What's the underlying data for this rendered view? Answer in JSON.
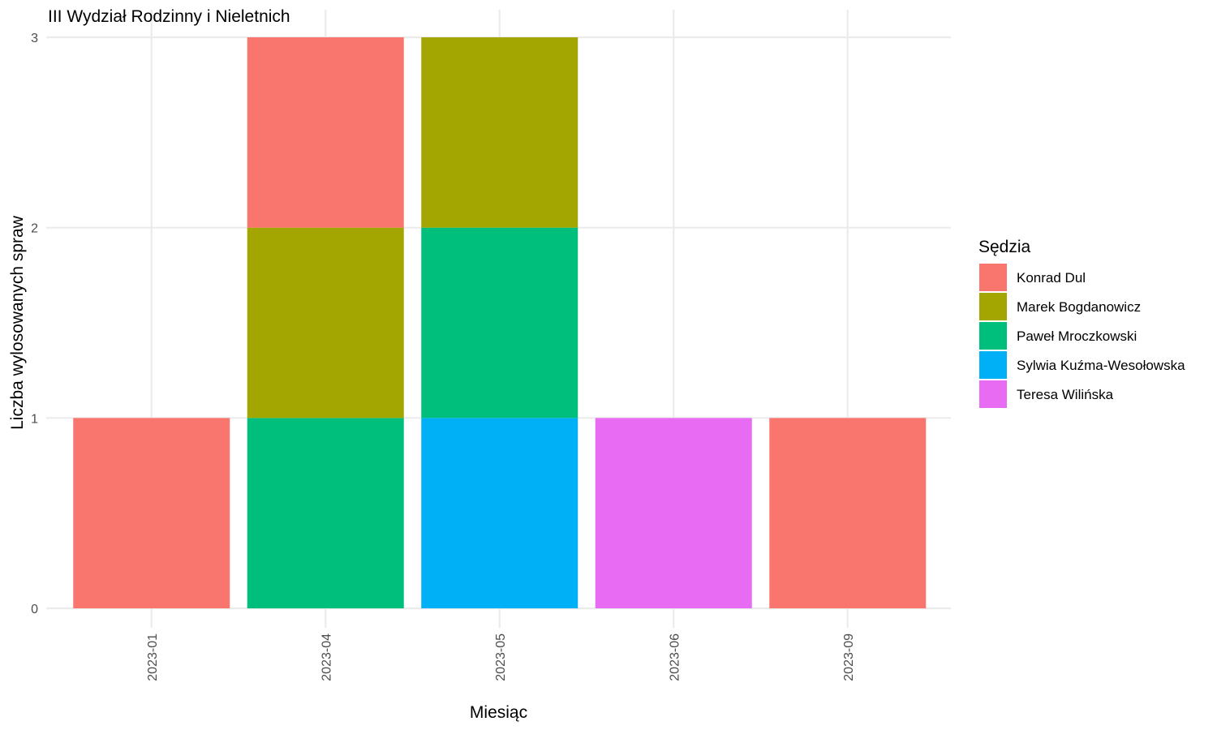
{
  "chart_data": {
    "type": "bar",
    "stacked": true,
    "title": "III Wydział Rodzinny i Nieletnich",
    "xlabel": "Miesiąc",
    "ylabel": "Liczba wylosowanych spraw",
    "categories": [
      "2023-01",
      "2023-04",
      "2023-05",
      "2023-06",
      "2023-09"
    ],
    "ylim": [
      0,
      3
    ],
    "yticks": [
      "0",
      "1",
      "2",
      "3"
    ],
    "grid": true,
    "legend": {
      "title": "Sędzia",
      "position": "right"
    },
    "series": [
      {
        "name": "Konrad Dul",
        "color": "#F8766D",
        "values": [
          1,
          1,
          0,
          0,
          1
        ]
      },
      {
        "name": "Marek Bogdanowicz",
        "color": "#A3A500",
        "values": [
          0,
          1,
          1,
          0,
          0
        ]
      },
      {
        "name": "Paweł Mroczkowski",
        "color": "#00BF7D",
        "values": [
          0,
          1,
          1,
          0,
          0
        ]
      },
      {
        "name": "Sylwia Kuźma-Wesołowska",
        "color": "#00B0F6",
        "values": [
          0,
          0,
          1,
          0,
          0
        ]
      },
      {
        "name": "Teresa Wilińska",
        "color": "#E76BF3",
        "values": [
          0,
          0,
          0,
          1,
          0
        ]
      }
    ],
    "stack_order": [
      [
        "Konrad Dul"
      ],
      [
        "Paweł Mroczkowski",
        "Marek Bogdanowicz",
        "Konrad Dul"
      ],
      [
        "Sylwia Kuźma-Wesołowska",
        "Paweł Mroczkowski",
        "Marek Bogdanowicz"
      ],
      [
        "Teresa Wilińska"
      ],
      [
        "Konrad Dul"
      ]
    ]
  }
}
